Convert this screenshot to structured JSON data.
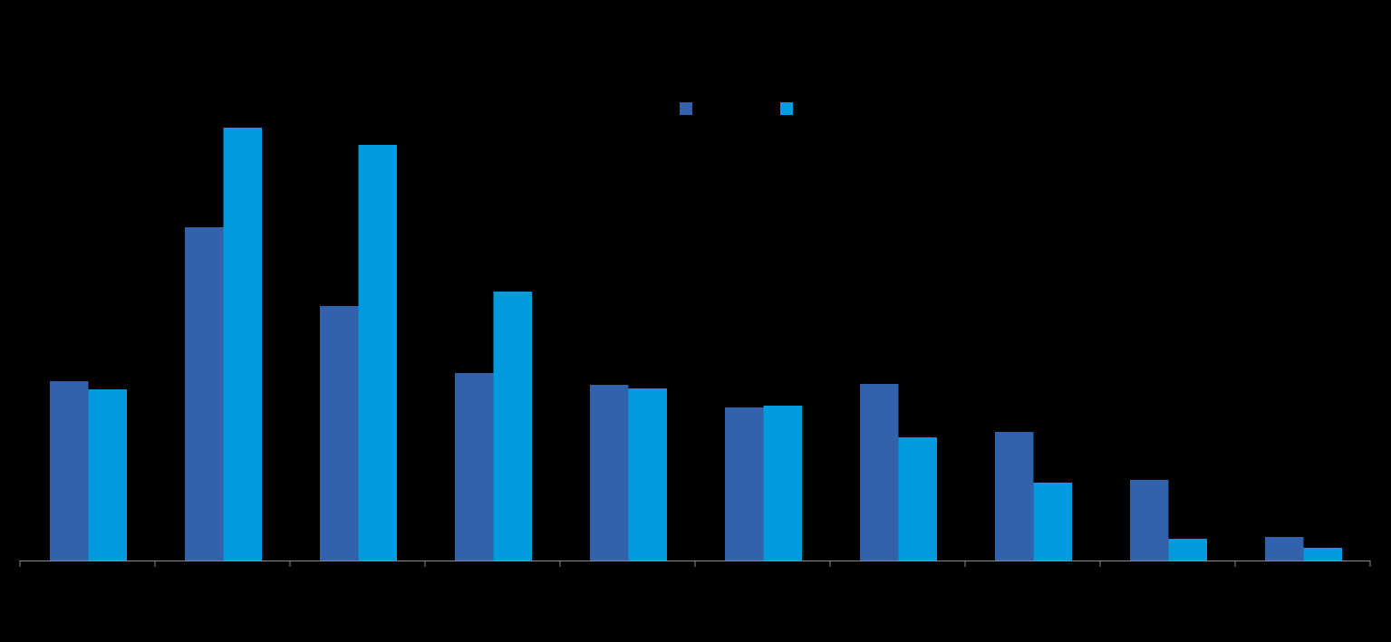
{
  "chart_data": {
    "type": "bar",
    "categories": [
      null,
      null,
      null,
      null,
      null,
      null,
      null,
      null,
      null,
      null
    ],
    "series": [
      {
        "color": "#3162ab",
        "values": [
          198,
          368,
          281,
          207,
          194,
          169,
          195,
          142,
          89,
          26
        ]
      },
      {
        "color": "#009bde",
        "values": [
          189,
          478,
          459,
          297,
          190,
          171,
          136,
          86,
          24,
          14
        ]
      }
    ],
    "ylim": [
      0,
      500
    ]
  }
}
